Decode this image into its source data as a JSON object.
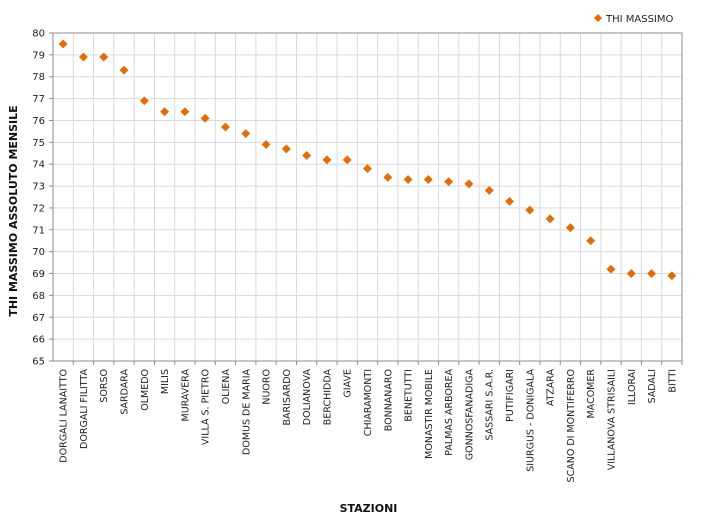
{
  "chart_data": {
    "type": "scatter",
    "title": "",
    "xlabel": "STAZIONI",
    "ylabel": "THI MASSIMO ASSOLUTO MENSILE",
    "ylim": [
      65,
      80
    ],
    "y_ticks": [
      65,
      66,
      67,
      68,
      69,
      70,
      71,
      72,
      73,
      74,
      75,
      76,
      77,
      78,
      79,
      80
    ],
    "grid": true,
    "legend_position": "top-right",
    "marker": "diamond",
    "color": "#E36C0A",
    "categories": [
      "DORGALI LANAITTO",
      "DORGALI FILITTA",
      "SORSO",
      "SARDARA",
      "OLMEDO",
      "MILIS",
      "MURAVERA",
      "VILLA S. PIETRO",
      "OLIENA",
      "DOMUS DE MARIA",
      "NUORO",
      "BARISARDO",
      "DOLIANOVA",
      "BERCHIDDA",
      "GIAVE",
      "CHIARAMONTI",
      "BONNANARO",
      "BENETUTTI",
      "MONASTIR MOBILE",
      "PALMAS ARBOREA",
      "GONNOSFANADIGA",
      "SASSARI S.A.R.",
      "PUTIFIGARI",
      "SIURGUS - DONIGALA",
      "ATZARA",
      "SCANO DI MONTIFERRO",
      "MACOMER",
      "VILLANOVA STRISAILI",
      "ILLORAI",
      "SADALI",
      "BITTI"
    ],
    "series": [
      {
        "name": "THI MASSIMO",
        "values": [
          79.5,
          78.9,
          78.9,
          78.3,
          76.9,
          76.4,
          76.4,
          76.1,
          75.7,
          75.4,
          74.9,
          74.7,
          74.4,
          74.2,
          74.2,
          73.8,
          73.4,
          73.3,
          73.3,
          73.2,
          73.1,
          72.8,
          72.3,
          71.9,
          71.5,
          71.1,
          70.5,
          69.2,
          69.0,
          69.0,
          68.9
        ]
      }
    ]
  }
}
